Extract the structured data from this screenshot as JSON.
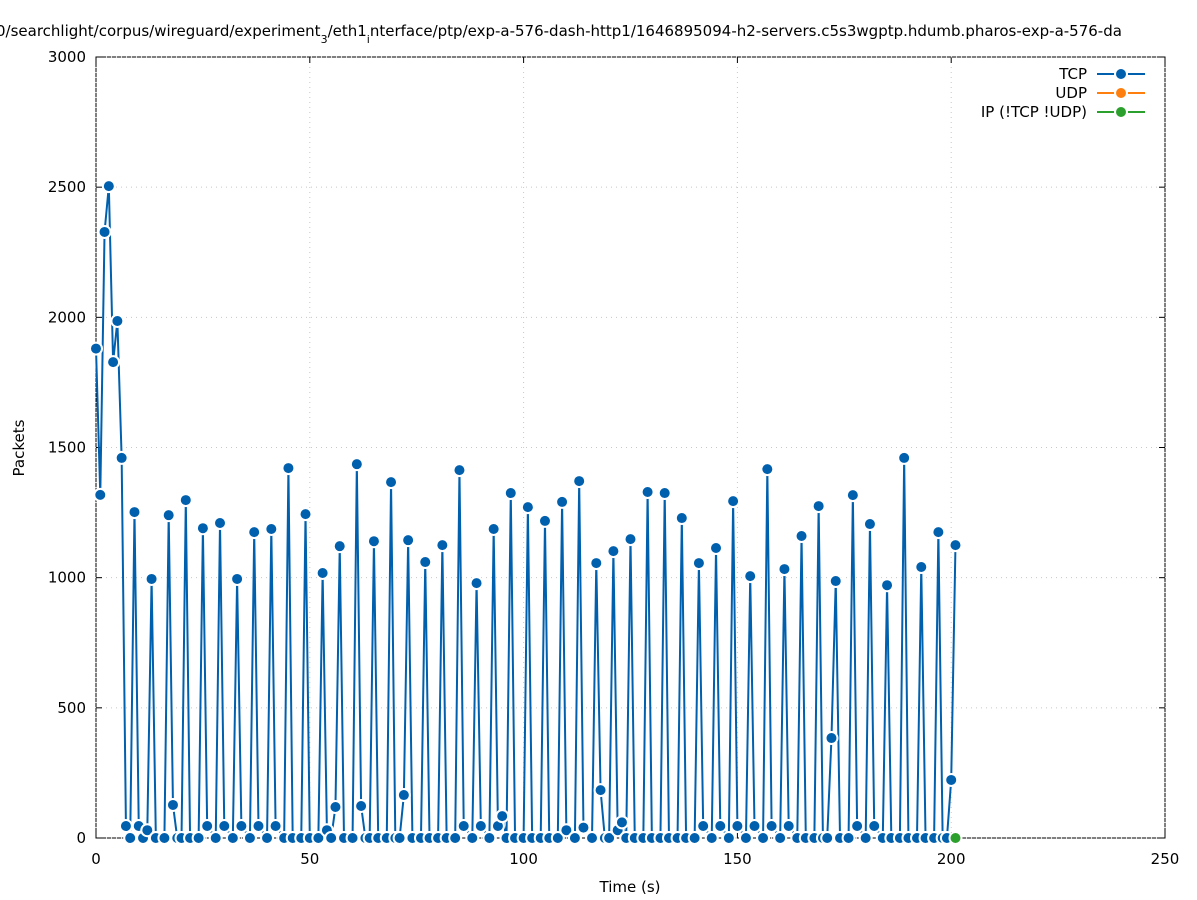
{
  "chart_data": {
    "type": "line",
    "title": [
      "0/searchlight/corpus/wireguard/experiment",
      "3",
      "/eth1",
      "i",
      "nterface/ptp/exp-a-576-dash-http1/1646895094-h2-servers.c5s3wgptp.hdumb.pharos-exp-a-576-da"
    ],
    "x_label": "Time (s)",
    "y_label": "Packets",
    "xlim": [
      0,
      250
    ],
    "ylim": [
      0,
      3000
    ],
    "xticks": [
      0,
      50,
      100,
      150,
      200,
      250
    ],
    "yticks": [
      0,
      500,
      1000,
      1500,
      2000,
      2500,
      3000
    ],
    "grid": true,
    "legend": "top-right",
    "series": [
      {
        "name": "TCP",
        "color": "#0060ad",
        "x": [
          0,
          1,
          2,
          3,
          4,
          5,
          6,
          7,
          8,
          9,
          10,
          11,
          12,
          13,
          14,
          16,
          17,
          18,
          19,
          20,
          21,
          22,
          24,
          25,
          26,
          28,
          29,
          30,
          32,
          33,
          34,
          36,
          37,
          38,
          40,
          41,
          42,
          44,
          45,
          46,
          48,
          49,
          50,
          52,
          53,
          54,
          55,
          56,
          57,
          58,
          60,
          61,
          62,
          63,
          64,
          65,
          66,
          68,
          69,
          70,
          71,
          72,
          73,
          74,
          76,
          77,
          78,
          80,
          81,
          82,
          84,
          85,
          86,
          88,
          89,
          90,
          92,
          93,
          94,
          95,
          96,
          97,
          98,
          100,
          101,
          102,
          104,
          105,
          106,
          108,
          109,
          110,
          112,
          113,
          114,
          116,
          117,
          118,
          119,
          120,
          121,
          122,
          123,
          124,
          125,
          126,
          128,
          129,
          130,
          132,
          133,
          134,
          136,
          137,
          138,
          140,
          141,
          142,
          144,
          145,
          146,
          148,
          149,
          150,
          152,
          153,
          154,
          156,
          157,
          158,
          160,
          161,
          162,
          164,
          165,
          166,
          168,
          169,
          170,
          171,
          172,
          173,
          174,
          176,
          177,
          178,
          180,
          181,
          182,
          184,
          185,
          186,
          188,
          189,
          190,
          192,
          193,
          194,
          196,
          197,
          198,
          199,
          200,
          201
        ],
        "values": [
          1880,
          1318,
          2328,
          2504,
          1828,
          1986,
          1460,
          46,
          0,
          1252,
          46,
          0,
          30,
          995,
          0,
          0,
          1240,
          127,
          0,
          0,
          1298,
          0,
          0,
          1190,
          46,
          0,
          1210,
          46,
          0,
          995,
          46,
          0,
          1175,
          46,
          0,
          1187,
          46,
          0,
          1421,
          0,
          0,
          1244,
          0,
          0,
          1018,
          30,
          0,
          119,
          1121,
          0,
          0,
          1436,
          123,
          0,
          0,
          1140,
          0,
          0,
          1367,
          0,
          0,
          165,
          1144,
          0,
          0,
          1060,
          0,
          0,
          1125,
          0,
          0,
          1413,
          46,
          0,
          979,
          46,
          0,
          1187,
          46,
          84,
          0,
          1325,
          0,
          0,
          1271,
          0,
          0,
          1218,
          0,
          0,
          1291,
          30,
          0,
          1371,
          40,
          0,
          1056,
          184,
          0,
          0,
          1102,
          30,
          60,
          0,
          1148,
          0,
          0,
          1329,
          0,
          0,
          1325,
          0,
          0,
          1229,
          0,
          0,
          1056,
          46,
          0,
          1114,
          46,
          0,
          1294,
          46,
          0,
          1006,
          46,
          0,
          1417,
          46,
          0,
          1033,
          46,
          0,
          1160,
          0,
          0,
          1275,
          0,
          0,
          384,
          987,
          0,
          0,
          1317,
          46,
          0,
          1206,
          46,
          0,
          971,
          0,
          0,
          1460,
          0,
          0,
          1041,
          0,
          0,
          1175,
          0,
          0,
          223,
          1125
        ]
      },
      {
        "name": "UDP",
        "color": "#ff7f0e",
        "x": [],
        "values": []
      },
      {
        "name": "IP (!TCP  !UDP)",
        "color": "#2ca02c",
        "x": [
          201
        ],
        "values": [
          0
        ]
      }
    ]
  }
}
